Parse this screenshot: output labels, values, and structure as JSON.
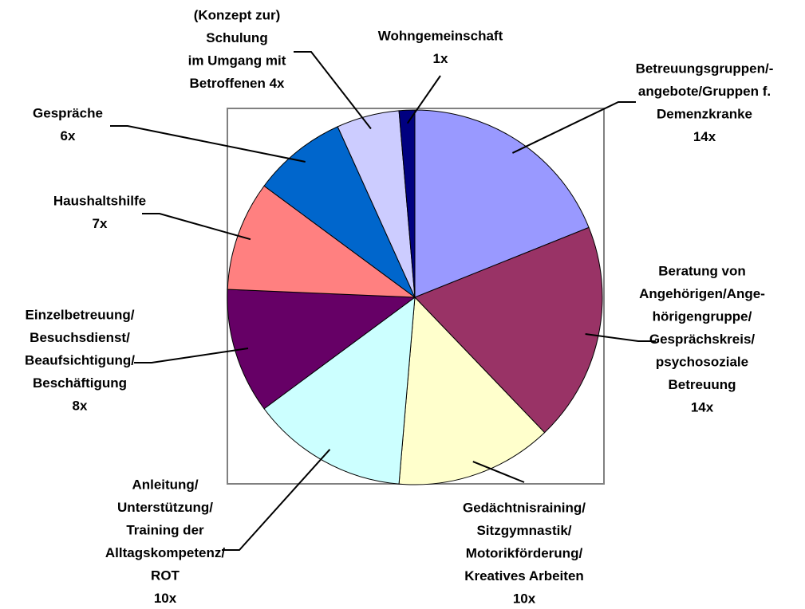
{
  "chart_data": {
    "type": "pie",
    "categories": [
      [
        "Betreuungsgruppen/-",
        "angebote/Gruppen f.",
        "Demenzkranke"
      ],
      [
        "Beratung von",
        "Angehörigen/Ange-",
        "hörigengruppe/",
        "Gesprächskreis/",
        "psychosoziale",
        "Betreuung"
      ],
      [
        "Gedächtnisraining/",
        "Sitzgymnastik/",
        "Motorikförderung/",
        "Kreatives Arbeiten"
      ],
      [
        "Anleitung/",
        "Unterstützung/",
        "Training der",
        "Alltagskompetenz/",
        "ROT"
      ],
      [
        "Einzelbetreuung/",
        "Besuchsdienst/",
        "Beaufsichtigung/",
        "Beschäftigung"
      ],
      [
        "Haushaltshilfe"
      ],
      [
        "Gespräche"
      ],
      [
        "(Konzept zur)",
        "Schulung",
        "im Umgang mit",
        "Betroffenen 4x"
      ],
      [
        "Wohngemeinschaft"
      ]
    ],
    "values": [
      14,
      14,
      10,
      10,
      8,
      7,
      6,
      4,
      1
    ],
    "value_labels": [
      "14x",
      "14x",
      "10x",
      "10x",
      "8x",
      "7x",
      "6x",
      null,
      "1x"
    ],
    "colors": [
      "#9999ff",
      "#993366",
      "#ffffcc",
      "#ccffff",
      "#660066",
      "#ff8080",
      "#0066cc",
      "#ccccff",
      "#000080"
    ]
  }
}
